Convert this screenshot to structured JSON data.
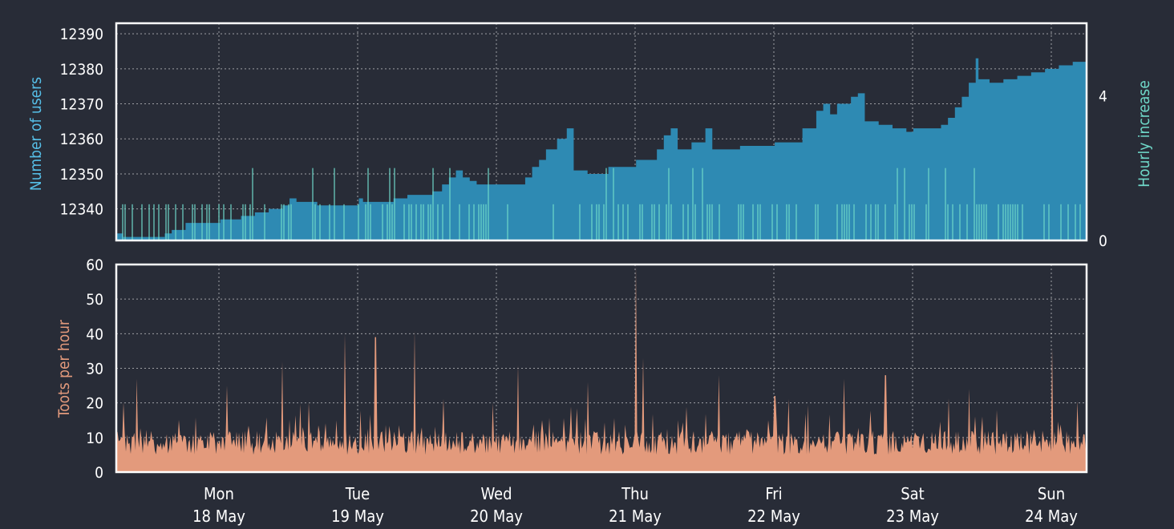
{
  "colors": {
    "background": "#282c37",
    "frame": "#ffffff",
    "grid": "#ffffff",
    "users_fill": "#2e8ab3",
    "hourly_increase": "#6fd8c9",
    "toots_fill": "#e39a7c",
    "users_label": "#56bfe8",
    "toots_label": "#e39a7c"
  },
  "chart_data": [
    {
      "panel": "top",
      "type": "area",
      "ylabel": "Number of users",
      "ylabel_right": "Hourly increase",
      "yticks": [
        12340,
        12350,
        12360,
        12370,
        12380,
        12390
      ],
      "ylim": [
        12331,
        12393
      ],
      "yticks_right": [
        0,
        4
      ],
      "ylim_right": [
        0,
        6
      ],
      "x_range_days": [
        0,
        7
      ],
      "grid": true,
      "series": [
        {
          "kind": "area",
          "values": [
            [
              0.0,
              12333
            ],
            [
              0.05,
              12332
            ],
            [
              0.2,
              12332
            ],
            [
              0.35,
              12333
            ],
            [
              0.4,
              12334
            ],
            [
              0.5,
              12336
            ],
            [
              0.65,
              12336
            ],
            [
              0.75,
              12337
            ],
            [
              0.85,
              12337
            ],
            [
              0.9,
              12338
            ],
            [
              1.0,
              12339
            ],
            [
              1.1,
              12340
            ],
            [
              1.2,
              12341
            ],
            [
              1.25,
              12343
            ],
            [
              1.3,
              12342
            ],
            [
              1.35,
              12342
            ],
            [
              1.45,
              12341
            ],
            [
              1.6,
              12341
            ],
            [
              1.7,
              12341
            ],
            [
              1.75,
              12343
            ],
            [
              1.78,
              12342
            ],
            [
              1.9,
              12342
            ],
            [
              2.0,
              12343
            ],
            [
              2.1,
              12344
            ],
            [
              2.2,
              12344
            ],
            [
              2.28,
              12345
            ],
            [
              2.35,
              12347
            ],
            [
              2.4,
              12349
            ],
            [
              2.45,
              12351
            ],
            [
              2.5,
              12349
            ],
            [
              2.55,
              12348
            ],
            [
              2.6,
              12347
            ],
            [
              2.7,
              12347
            ],
            [
              2.8,
              12347
            ],
            [
              2.9,
              12347
            ],
            [
              2.95,
              12349
            ],
            [
              3.0,
              12352
            ],
            [
              3.05,
              12354
            ],
            [
              3.1,
              12357
            ],
            [
              3.18,
              12360
            ],
            [
              3.25,
              12363
            ],
            [
              3.3,
              12351
            ],
            [
              3.4,
              12350
            ],
            [
              3.5,
              12350
            ],
            [
              3.55,
              12352
            ],
            [
              3.65,
              12352
            ],
            [
              3.75,
              12354
            ],
            [
              3.85,
              12354
            ],
            [
              3.9,
              12357
            ],
            [
              3.95,
              12361
            ],
            [
              4.0,
              12363
            ],
            [
              4.05,
              12357
            ],
            [
              4.15,
              12359
            ],
            [
              4.25,
              12363
            ],
            [
              4.3,
              12357
            ],
            [
              4.4,
              12357
            ],
            [
              4.5,
              12358
            ],
            [
              4.6,
              12358
            ],
            [
              4.7,
              12358
            ],
            [
              4.75,
              12359
            ],
            [
              4.85,
              12359
            ],
            [
              4.95,
              12363
            ],
            [
              5.05,
              12368
            ],
            [
              5.1,
              12370
            ],
            [
              5.15,
              12367
            ],
            [
              5.2,
              12370
            ],
            [
              5.3,
              12372
            ],
            [
              5.35,
              12373
            ],
            [
              5.4,
              12365
            ],
            [
              5.5,
              12364
            ],
            [
              5.6,
              12363
            ],
            [
              5.7,
              12362
            ],
            [
              5.75,
              12363
            ],
            [
              5.85,
              12363
            ],
            [
              5.95,
              12364
            ],
            [
              6.0,
              12366
            ],
            [
              6.05,
              12369
            ],
            [
              6.1,
              12372
            ],
            [
              6.15,
              12376
            ],
            [
              6.2,
              12383
            ],
            [
              6.22,
              12377
            ],
            [
              6.3,
              12376
            ],
            [
              6.4,
              12377
            ],
            [
              6.5,
              12378
            ],
            [
              6.6,
              12379
            ],
            [
              6.7,
              12380
            ],
            [
              6.8,
              12381
            ],
            [
              6.9,
              12382
            ],
            [
              6.95,
              12382
            ],
            [
              7.0,
              12386
            ]
          ]
        },
        {
          "kind": "spikes",
          "name": "Hourly increase",
          "note": "sparse vertical spikes, heights 0–2"
        }
      ]
    },
    {
      "panel": "bottom",
      "type": "area",
      "ylabel": "Toots per hour",
      "yticks": [
        0,
        10,
        20,
        30,
        40,
        50,
        60
      ],
      "ylim": [
        0,
        60
      ],
      "grid": true,
      "x_categories": [
        {
          "day": "Mon",
          "date": "18 May"
        },
        {
          "day": "Tue",
          "date": "19 May"
        },
        {
          "day": "Wed",
          "date": "20 May"
        },
        {
          "day": "Thu",
          "date": "21 May"
        },
        {
          "day": "Fri",
          "date": "22 May"
        },
        {
          "day": "Sat",
          "date": "23 May"
        },
        {
          "day": "Sun",
          "date": "24 May"
        }
      ],
      "peaks": [
        [
          0.15,
          27
        ],
        [
          0.8,
          25
        ],
        [
          1.2,
          32
        ],
        [
          1.65,
          40
        ],
        [
          1.87,
          39
        ],
        [
          2.15,
          41
        ],
        [
          2.9,
          31
        ],
        [
          3.4,
          26
        ],
        [
          3.75,
          60
        ],
        [
          3.8,
          33
        ],
        [
          4.35,
          28
        ],
        [
          4.75,
          22
        ],
        [
          5.25,
          27
        ],
        [
          5.55,
          28
        ],
        [
          6.15,
          24
        ],
        [
          6.75,
          36
        ]
      ],
      "baseline_level": 5
    }
  ]
}
